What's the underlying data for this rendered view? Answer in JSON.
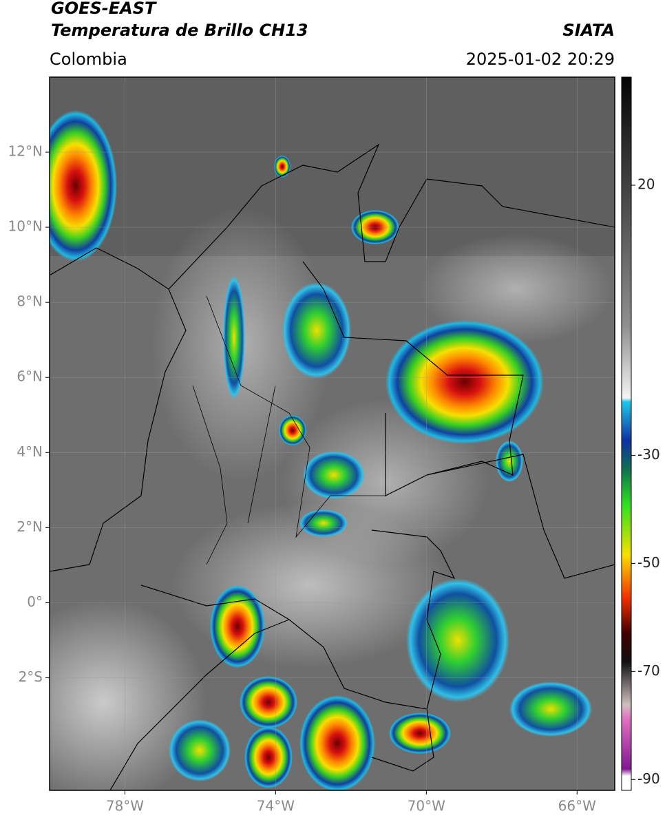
{
  "header": {
    "title": "GOES-EAST",
    "subtitle": "Temperatura de Brillo CH13",
    "region": "Colombia",
    "source": "SIATA",
    "datetime": "2025-01-02 20:29"
  },
  "map": {
    "xlim": [
      -80,
      -65
    ],
    "ylim": [
      -5,
      14
    ],
    "xticks": [
      {
        "value": -78,
        "label": "78°W"
      },
      {
        "value": -74,
        "label": "74°W"
      },
      {
        "value": -70,
        "label": "70°W"
      },
      {
        "value": -66,
        "label": "66°W"
      }
    ],
    "yticks": [
      {
        "value": 12,
        "label": "12°N"
      },
      {
        "value": 10,
        "label": "10°N"
      },
      {
        "value": 8,
        "label": "8°N"
      },
      {
        "value": 6,
        "label": "6°N"
      },
      {
        "value": 4,
        "label": "4°N"
      },
      {
        "value": 2,
        "label": "2°N"
      },
      {
        "value": 0,
        "label": "0°"
      },
      {
        "value": -2,
        "label": "2°S"
      }
    ],
    "grid": true
  },
  "colorbar": {
    "range": [
      -92,
      40
    ],
    "ticks": [
      20,
      -30,
      -50,
      -70,
      -90
    ]
  }
}
